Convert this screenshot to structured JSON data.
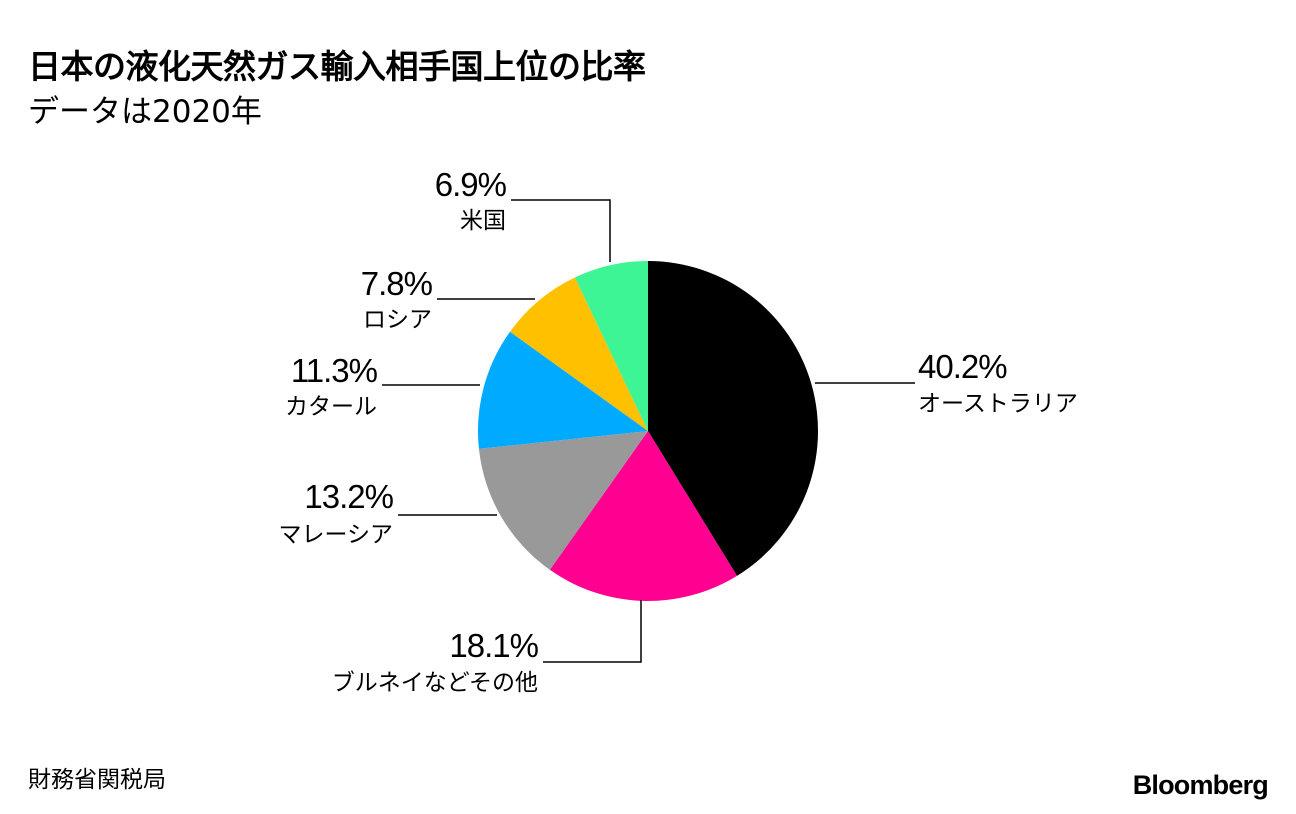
{
  "title": "日本の液化天然ガス輸入相手国上位の比率",
  "subtitle": "データは2020年",
  "source": "財務省関税局",
  "brand": "Bloomberg",
  "chart_data": {
    "type": "pie",
    "start_angle_deg": 0,
    "direction": "clockwise",
    "slices": [
      {
        "label": "オーストラリア",
        "value": 40.2,
        "display": "40.2%",
        "color": "#000000"
      },
      {
        "label": "ブルネイなどその他",
        "value": 18.1,
        "display": "18.1%",
        "color": "#ff0090"
      },
      {
        "label": "マレーシア",
        "value": 13.2,
        "display": "13.2%",
        "color": "#999999"
      },
      {
        "label": "カタール",
        "value": 11.3,
        "display": "11.3%",
        "color": "#00aaff"
      },
      {
        "label": "ロシア",
        "value": 7.8,
        "display": "7.8%",
        "color": "#ffc000"
      },
      {
        "label": "米国",
        "value": 6.9,
        "display": "6.9%",
        "color": "#3df594"
      }
    ]
  }
}
